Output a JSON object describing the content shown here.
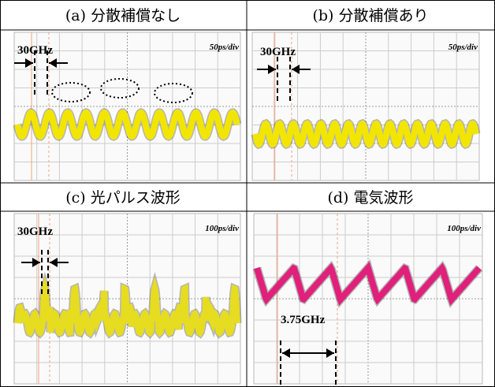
{
  "panels": [
    {
      "title": "(a) 分散補償なし",
      "freq": "30GHz",
      "scale": "50ps/div"
    },
    {
      "title": "(b) 分散補償あり",
      "freq": "30GHz",
      "scale": "50ps/div"
    },
    {
      "title": "(c) 光パルス波形",
      "freq": "30GHz",
      "scale": "100ps/div"
    },
    {
      "title": "(d) 電気波形",
      "freq": "3.75GHz",
      "scale": "100ps/div"
    }
  ]
}
